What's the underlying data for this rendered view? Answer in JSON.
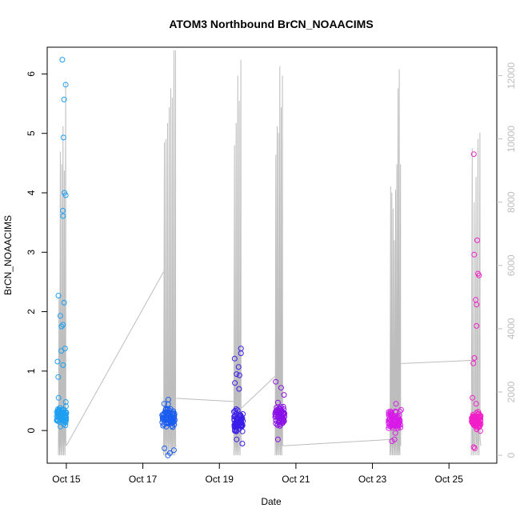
{
  "chart_data": {
    "type": "scatter",
    "title": "ATOM3 Northbound BrCN_NOAACIMS",
    "xlabel": "Date",
    "ylabel": "BrCN_NOAACIMS",
    "x_ticks": [
      "Oct 15",
      "Oct 17",
      "Oct 19",
      "Oct 21",
      "Oct 23",
      "Oct 25"
    ],
    "xlim": [
      "2017-10-14 12:00",
      "2017-10-26 06:00"
    ],
    "ylim": [
      -0.55,
      6.45
    ],
    "y_ticks": [
      0,
      1,
      2,
      3,
      4,
      5,
      6
    ],
    "y2_ticks": [
      0,
      2000,
      4000,
      6000,
      8000,
      10000,
      12000
    ],
    "y2_lim": [
      -250,
      12900
    ],
    "y2_color": "#bdbdbd",
    "point_series": [
      {
        "center": "2017-10-14 21:00",
        "halfwidth_hours": 3,
        "color": "#1e9ff2",
        "base": 0.25,
        "outliers": [
          6.24,
          5.82,
          5.57,
          4.93,
          4.0,
          3.96,
          3.7,
          3.61,
          2.27,
          2.15,
          1.93,
          1.78,
          1.75,
          1.38,
          1.34,
          1.16,
          1.1,
          0.9,
          0.55,
          0.48
        ]
      },
      {
        "center": "2017-10-17 16:00",
        "halfwidth_hours": 4,
        "color": "#1a5cf0",
        "base": 0.22,
        "outliers": [
          -0.3,
          -0.33,
          -0.38,
          -0.42,
          0.52,
          0.45
        ]
      },
      {
        "center": "2017-10-19 12:00",
        "halfwidth_hours": 3,
        "color": "#3a1ee8",
        "base": 0.16,
        "outliers": [
          1.38,
          1.3,
          1.21,
          1.07,
          0.95,
          0.93,
          0.8,
          0.7,
          -0.15,
          -0.22
        ]
      },
      {
        "center": "2017-10-20 14:00",
        "halfwidth_hours": 3,
        "color": "#8a10e8",
        "base": 0.26,
        "outliers": [
          0.82,
          0.72,
          0.6,
          -0.15
        ]
      },
      {
        "center": "2017-10-23 14:00",
        "halfwidth_hours": 4,
        "color": "#d81ae8",
        "base": 0.16,
        "outliers": [
          0.45,
          -0.15,
          -0.18
        ]
      },
      {
        "center": "2017-10-25 17:00",
        "halfwidth_hours": 3,
        "color": "#f21ec8",
        "base": 0.17,
        "outliers": [
          4.65,
          3.2,
          2.96,
          2.64,
          2.61,
          2.2,
          2.12,
          1.76,
          1.22,
          1.13,
          0.55,
          0.45,
          -0.28,
          -0.3
        ]
      }
    ],
    "altitude_trace": {
      "color": "#bdbdbd",
      "segments": [
        {
          "start": "2017-10-14 19:00",
          "end": "2017-10-15 00:00",
          "peaks": [
            5000,
            9600,
            9200,
            10400,
            9000,
            11800
          ]
        },
        {
          "start": "2017-10-17 13:00",
          "end": "2017-10-17 21:00",
          "peaks": [
            9900,
            10000,
            10500,
            11000,
            11600,
            11300,
            12800,
            12800
          ]
        },
        {
          "start": "2017-10-19 09:00",
          "end": "2017-10-19 14:00",
          "peaks": [
            9800,
            10500,
            12000,
            11200,
            12500
          ]
        },
        {
          "start": "2017-10-20 11:00",
          "end": "2017-10-20 16:00",
          "peaks": [
            9500,
            10400,
            10200,
            12300,
            11000,
            12000
          ]
        },
        {
          "start": "2017-10-23 11:00",
          "end": "2017-10-23 18:00",
          "peaks": [
            8500,
            8300,
            7800,
            6800,
            8400,
            9200,
            11600,
            12200,
            9200
          ]
        },
        {
          "start": "2017-10-25 14:00",
          "end": "2017-10-25 20:00",
          "peaks": [
            9700,
            8000,
            8800,
            10000,
            10200
          ]
        }
      ],
      "connectors": [
        [
          "2017-10-15 00:00",
          300,
          "2017-10-17 13:00",
          5800
        ],
        [
          "2017-10-17 21:00",
          1800,
          "2017-10-19 09:00",
          1700
        ],
        [
          "2017-10-19 14:00",
          1500,
          "2017-10-20 11:00",
          2500
        ],
        [
          "2017-10-20 16:00",
          300,
          "2017-10-23 11:00",
          500
        ],
        [
          "2017-10-23 18:00",
          2900,
          "2017-10-25 14:00",
          3000
        ]
      ]
    }
  }
}
